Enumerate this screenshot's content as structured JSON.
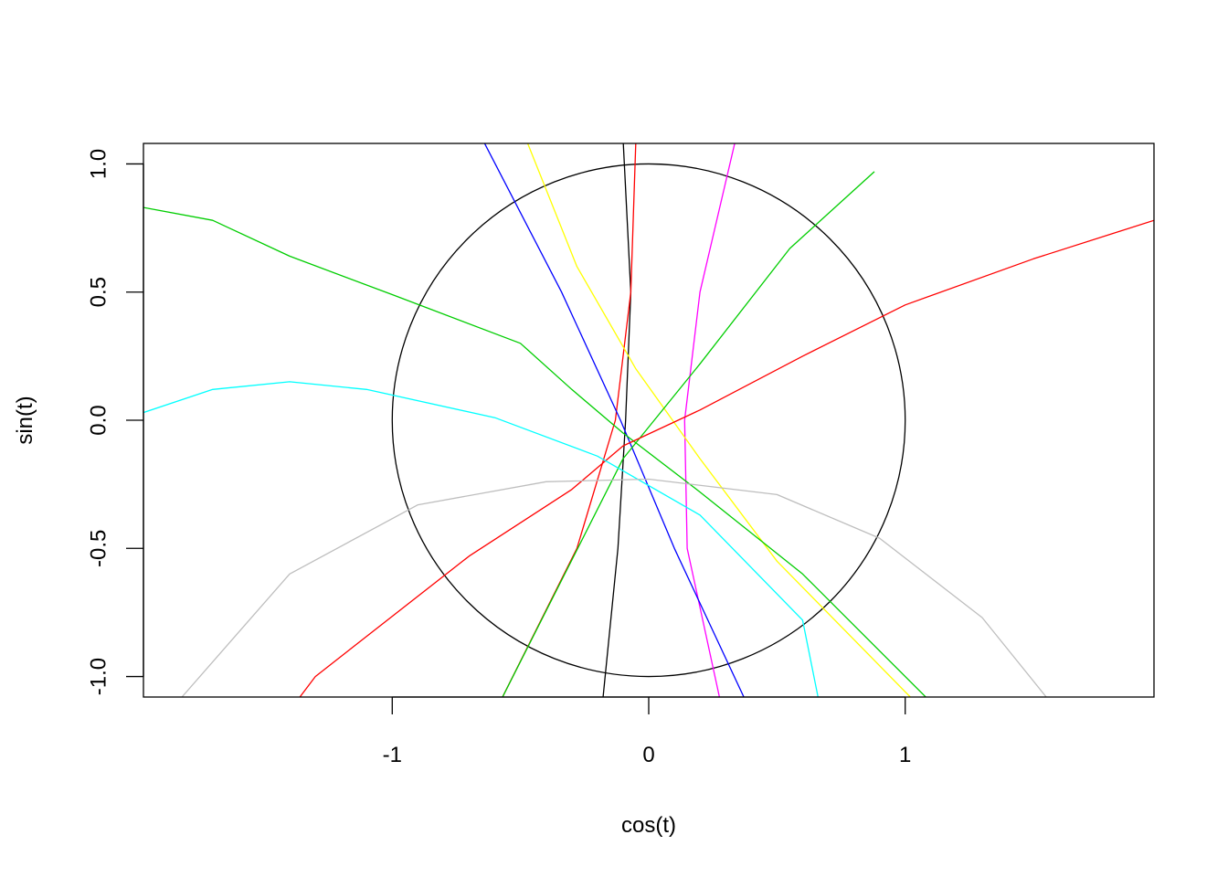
{
  "chart_data": {
    "type": "line",
    "xlabel": "cos(t)",
    "ylabel": "sin(t)",
    "xlim": [
      -1.97,
      1.97
    ],
    "ylim": [
      -1.08,
      1.08
    ],
    "x_ticks": [
      {
        "value": -1,
        "label": "-1"
      },
      {
        "value": 0,
        "label": "0"
      },
      {
        "value": 1,
        "label": "1"
      }
    ],
    "y_ticks": [
      {
        "value": -1.0,
        "label": "-1.0"
      },
      {
        "value": -0.5,
        "label": "-0.5"
      },
      {
        "value": 0.0,
        "label": "0.0"
      },
      {
        "value": 0.5,
        "label": "0.5"
      },
      {
        "value": 1.0,
        "label": "1.0"
      }
    ],
    "grid": false,
    "series": [
      {
        "color": "#000000",
        "kind": "circle",
        "center": [
          0,
          0
        ],
        "radius": 1
      },
      {
        "color": "#000000",
        "points": [
          [
            -0.1,
            1.1
          ],
          [
            -0.07,
            0.5
          ],
          [
            -0.09,
            0.0
          ],
          [
            -0.12,
            -0.5
          ],
          [
            -0.18,
            -1.1
          ]
        ]
      },
      {
        "color": "#FF0000",
        "points": [
          [
            -0.05,
            1.1
          ],
          [
            -0.07,
            0.5
          ],
          [
            -0.13,
            0.0
          ],
          [
            -0.28,
            -0.5
          ],
          [
            -0.58,
            -1.1
          ]
        ]
      },
      {
        "color": "#FF00FF",
        "points": [
          [
            0.34,
            1.1
          ],
          [
            0.2,
            0.5
          ],
          [
            0.14,
            0.0
          ],
          [
            0.15,
            -0.5
          ],
          [
            0.28,
            -1.1
          ]
        ]
      },
      {
        "color": "#0000FF",
        "points": [
          [
            -0.65,
            1.1
          ],
          [
            -0.34,
            0.5
          ],
          [
            -0.11,
            0.0
          ],
          [
            0.1,
            -0.5
          ],
          [
            0.38,
            -1.1
          ]
        ]
      },
      {
        "color": "#FFFF00",
        "points": [
          [
            -0.48,
            1.1
          ],
          [
            -0.28,
            0.6
          ],
          [
            -0.05,
            0.2
          ],
          [
            0.2,
            -0.15
          ],
          [
            0.5,
            -0.55
          ],
          [
            1.02,
            -1.08
          ]
        ]
      },
      {
        "color": "#00CD00",
        "points": [
          [
            0.88,
            0.97
          ],
          [
            0.55,
            0.67
          ],
          [
            0.2,
            0.22
          ],
          [
            -0.1,
            -0.15
          ],
          [
            -0.58,
            -1.1
          ]
        ]
      },
      {
        "color": "#00CD00",
        "points": [
          [
            -1.97,
            0.83
          ],
          [
            -1.7,
            0.78
          ],
          [
            -1.4,
            0.64
          ],
          [
            -1.0,
            0.49
          ],
          [
            -0.5,
            0.3
          ],
          [
            -0.3,
            0.12
          ],
          [
            -0.1,
            -0.05
          ],
          [
            0.2,
            -0.28
          ],
          [
            0.6,
            -0.6
          ],
          [
            1.1,
            -1.1
          ]
        ]
      },
      {
        "color": "#FF0000",
        "points": [
          [
            1.97,
            0.78
          ],
          [
            1.5,
            0.63
          ],
          [
            1.0,
            0.45
          ],
          [
            0.6,
            0.25
          ],
          [
            0.2,
            0.04
          ],
          [
            -0.1,
            -0.1
          ],
          [
            -0.3,
            -0.27
          ],
          [
            -0.7,
            -0.53
          ],
          [
            -1.3,
            -1.0
          ],
          [
            -1.36,
            -1.08
          ]
        ]
      },
      {
        "color": "#00FFFF",
        "points": [
          [
            -1.97,
            0.03
          ],
          [
            -1.7,
            0.12
          ],
          [
            -1.4,
            0.15
          ],
          [
            -1.1,
            0.12
          ],
          [
            -0.6,
            0.01
          ],
          [
            -0.2,
            -0.14
          ],
          [
            0.2,
            -0.37
          ],
          [
            0.6,
            -0.78
          ],
          [
            0.66,
            -1.08
          ]
        ]
      },
      {
        "color": "#BEBEBE",
        "points": [
          [
            -1.82,
            -1.08
          ],
          [
            -1.4,
            -0.6
          ],
          [
            -0.9,
            -0.33
          ],
          [
            -0.4,
            -0.24
          ],
          [
            0.0,
            -0.23
          ],
          [
            0.5,
            -0.29
          ],
          [
            0.9,
            -0.46
          ],
          [
            1.3,
            -0.77
          ],
          [
            1.55,
            -1.08
          ]
        ]
      }
    ]
  }
}
